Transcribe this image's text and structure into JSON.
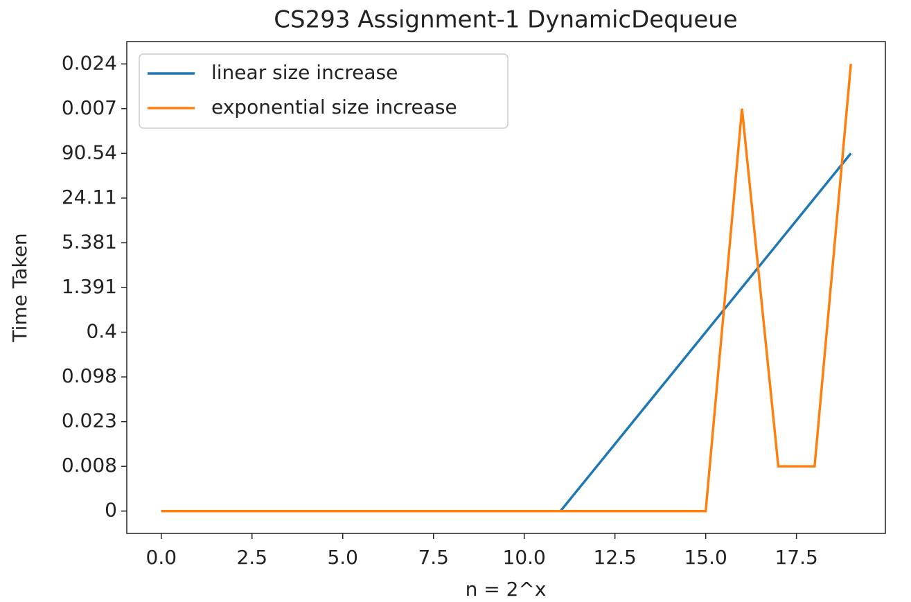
{
  "chart_data": {
    "type": "line",
    "title": "CS293 Assignment-1 DynamicDequeue",
    "xlabel": "n = 2^x",
    "ylabel": "Time Taken",
    "x": [
      0,
      1,
      2,
      3,
      4,
      5,
      6,
      7,
      8,
      9,
      10,
      11,
      12,
      13,
      14,
      15,
      16,
      17,
      18,
      19
    ],
    "series": [
      {
        "name": "linear size increase",
        "color": "#1f77b4",
        "values": [
          0,
          0,
          0,
          0,
          0,
          0,
          0,
          0,
          0,
          0,
          0,
          0,
          1,
          2,
          3,
          4,
          5,
          6,
          7,
          8
        ]
      },
      {
        "name": "exponential size increase",
        "color": "#ff7f0e",
        "values": [
          0,
          0,
          0,
          0,
          0,
          0,
          0,
          0,
          0,
          0,
          0,
          0,
          0,
          0,
          0,
          0,
          9,
          1,
          1,
          10
        ]
      }
    ],
    "xlim": [
      -0.95,
      19.95
    ],
    "xticks": [
      {
        "value": 0,
        "label": "0.0"
      },
      2.5,
      {
        "value": 5,
        "label": "5.0"
      },
      7.5,
      {
        "value": 10,
        "label": "10.0"
      },
      12.5,
      {
        "value": 15,
        "label": "15.0"
      },
      17.5
    ],
    "ylim": [
      -0.5,
      10.5
    ],
    "yticks": [
      {
        "value": 0,
        "label": "0"
      },
      {
        "value": 1,
        "label": "0.008"
      },
      {
        "value": 2,
        "label": "0.023"
      },
      {
        "value": 3,
        "label": "0.098"
      },
      {
        "value": 4,
        "label": "0.4"
      },
      {
        "value": 5,
        "label": "1.391"
      },
      {
        "value": 6,
        "label": "5.381"
      },
      {
        "value": 7,
        "label": "24.11"
      },
      {
        "value": 8,
        "label": "90.54"
      },
      {
        "value": 9,
        "label": "0.007"
      },
      {
        "value": 10,
        "label": "0.024"
      }
    ],
    "legend": "upper left"
  }
}
